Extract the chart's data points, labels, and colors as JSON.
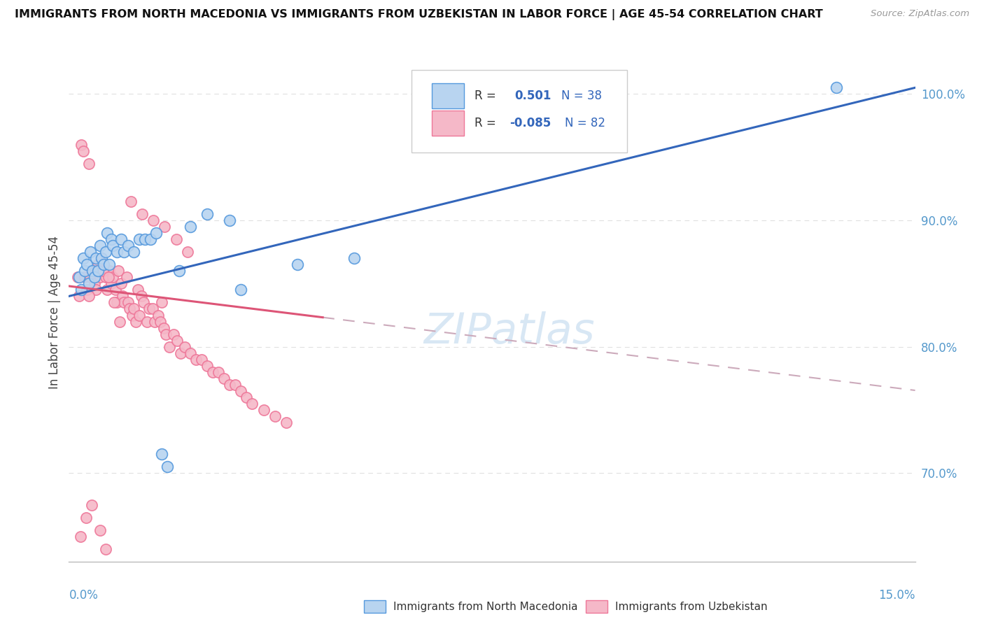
{
  "title": "IMMIGRANTS FROM NORTH MACEDONIA VS IMMIGRANTS FROM UZBEKISTAN IN LABOR FORCE | AGE 45-54 CORRELATION CHART",
  "source": "Source: ZipAtlas.com",
  "ylabel": "In Labor Force | Age 45-54",
  "xlim": [
    0.0,
    15.0
  ],
  "ylim": [
    63.0,
    102.5
  ],
  "yticks": [
    70.0,
    80.0,
    90.0,
    100.0
  ],
  "ytick_labels": [
    "70.0%",
    "80.0%",
    "90.0%",
    "100.0%"
  ],
  "blue_R": 0.501,
  "blue_N": 38,
  "pink_R": -0.085,
  "pink_N": 82,
  "blue_fill": "#b8d4f0",
  "pink_fill": "#f5b8c8",
  "blue_edge": "#5599dd",
  "pink_edge": "#ee7799",
  "blue_line": "#3366bb",
  "pink_line_solid": "#dd5577",
  "pink_line_dash": "#ccaabb",
  "watermark_color": "#c8ddf0",
  "background_color": "#ffffff",
  "grid_color": "#e0e0e0",
  "title_color": "#111111",
  "source_color": "#999999",
  "ytick_color": "#5599cc",
  "xtick_color": "#5599cc",
  "ylabel_color": "#444444",
  "legend_text_color": "#333333",
  "legend_R_color": "#3366bb",
  "legend_N_color": "#3366bb",
  "blue_x": [
    0.18,
    0.22,
    0.25,
    0.28,
    0.32,
    0.35,
    0.38,
    0.42,
    0.45,
    0.48,
    0.52,
    0.55,
    0.58,
    0.62,
    0.65,
    0.68,
    0.72,
    0.75,
    0.78,
    0.85,
    0.92,
    0.98,
    1.05,
    1.15,
    1.25,
    1.35,
    1.45,
    1.55,
    1.65,
    1.75,
    1.95,
    2.15,
    2.45,
    2.85,
    3.05,
    4.05,
    5.05,
    13.6
  ],
  "blue_y": [
    85.5,
    84.5,
    87.0,
    86.0,
    86.5,
    85.0,
    87.5,
    86.0,
    85.5,
    87.0,
    86.0,
    88.0,
    87.0,
    86.5,
    87.5,
    89.0,
    86.5,
    88.5,
    88.0,
    87.5,
    88.5,
    87.5,
    88.0,
    87.5,
    88.5,
    88.5,
    88.5,
    89.0,
    71.5,
    70.5,
    86.0,
    89.5,
    90.5,
    90.0,
    84.5,
    86.5,
    87.0,
    100.5
  ],
  "pink_x": [
    0.15,
    0.18,
    0.22,
    0.25,
    0.28,
    0.32,
    0.35,
    0.38,
    0.42,
    0.45,
    0.48,
    0.52,
    0.55,
    0.58,
    0.62,
    0.65,
    0.68,
    0.72,
    0.75,
    0.78,
    0.82,
    0.85,
    0.88,
    0.92,
    0.95,
    0.98,
    1.02,
    1.05,
    1.08,
    1.12,
    1.15,
    1.18,
    1.22,
    1.25,
    1.28,
    1.32,
    1.38,
    1.42,
    1.48,
    1.52,
    1.58,
    1.62,
    1.68,
    1.72,
    1.78,
    1.85,
    1.92,
    1.98,
    2.05,
    2.15,
    2.25,
    2.35,
    2.45,
    2.55,
    2.65,
    2.75,
    2.85,
    2.95,
    3.05,
    3.15,
    3.25,
    3.45,
    3.65,
    3.85,
    0.2,
    0.3,
    0.4,
    0.5,
    0.6,
    0.7,
    0.8,
    0.9,
    1.1,
    1.3,
    1.5,
    1.7,
    1.9,
    2.1,
    0.35,
    0.55,
    0.65,
    1.65
  ],
  "pink_y": [
    85.5,
    84.0,
    96.0,
    95.5,
    85.5,
    84.5,
    94.5,
    85.5,
    86.0,
    85.0,
    84.5,
    86.5,
    85.5,
    87.0,
    86.0,
    85.5,
    84.5,
    86.0,
    85.0,
    85.5,
    84.5,
    83.5,
    86.0,
    85.0,
    84.0,
    83.5,
    85.5,
    83.5,
    83.0,
    82.5,
    83.0,
    82.0,
    84.5,
    82.5,
    84.0,
    83.5,
    82.0,
    83.0,
    83.0,
    82.0,
    82.5,
    82.0,
    81.5,
    81.0,
    80.0,
    81.0,
    80.5,
    79.5,
    80.0,
    79.5,
    79.0,
    79.0,
    78.5,
    78.0,
    78.0,
    77.5,
    77.0,
    77.0,
    76.5,
    76.0,
    75.5,
    75.0,
    74.5,
    74.0,
    65.0,
    66.5,
    67.5,
    86.0,
    86.0,
    85.5,
    83.5,
    82.0,
    91.5,
    90.5,
    90.0,
    89.5,
    88.5,
    87.5,
    84.0,
    65.5,
    64.0,
    83.5
  ]
}
